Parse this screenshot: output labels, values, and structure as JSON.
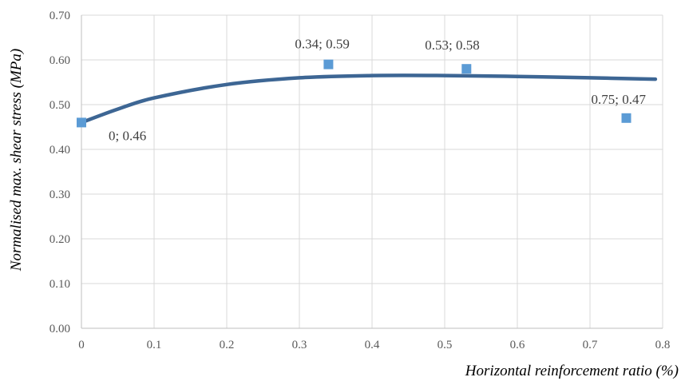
{
  "chart_data": {
    "type": "scatter",
    "title": "",
    "xlabel": "Horizontal reinforcement ratio (%)",
    "ylabel": "Normalised max. shear stress (MPa)",
    "xlim": [
      0,
      0.8
    ],
    "ylim": [
      0,
      0.7
    ],
    "x_ticks": [
      "0",
      "0.1",
      "0.2",
      "0.3",
      "0.4",
      "0.5",
      "0.6",
      "0.7",
      "0.8"
    ],
    "y_ticks": [
      "0.00",
      "0.10",
      "0.20",
      "0.30",
      "0.40",
      "0.50",
      "0.60",
      "0.70"
    ],
    "grid": "vertical and horizontal",
    "legend": "none",
    "colors": {
      "markers": "#5b9bd5",
      "trendline": "#3d6694"
    },
    "marker_shape": "square",
    "series": [
      {
        "points": [
          {
            "x": 0,
            "y": 0.46,
            "label": "0; 0.46"
          },
          {
            "x": 0.34,
            "y": 0.59,
            "label": "0.34; 0.59"
          },
          {
            "x": 0.53,
            "y": 0.58,
            "label": "0.53; 0.58"
          },
          {
            "x": 0.75,
            "y": 0.47,
            "label": "0.75; 0.47"
          }
        ]
      }
    ],
    "trendline": {
      "type": "smooth curve",
      "points": [
        {
          "x": 0,
          "y": 0.46
        },
        {
          "x": 0.05,
          "y": 0.49
        },
        {
          "x": 0.1,
          "y": 0.515
        },
        {
          "x": 0.2,
          "y": 0.545
        },
        {
          "x": 0.3,
          "y": 0.56
        },
        {
          "x": 0.4,
          "y": 0.565
        },
        {
          "x": 0.5,
          "y": 0.565
        },
        {
          "x": 0.6,
          "y": 0.563
        },
        {
          "x": 0.7,
          "y": 0.56
        },
        {
          "x": 0.79,
          "y": 0.557
        }
      ]
    }
  }
}
